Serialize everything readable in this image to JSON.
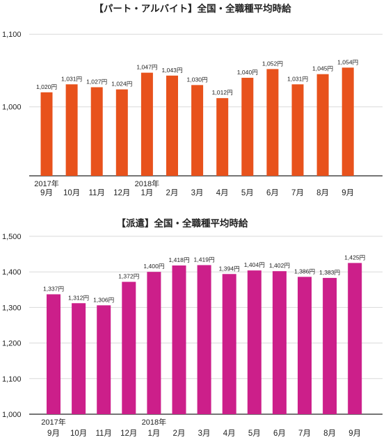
{
  "chart_data": [
    {
      "type": "bar",
      "title": "【パート・アルバイト】全国・全職種平均時給",
      "categories": [
        "9月",
        "10月",
        "11月",
        "12月",
        "1月",
        "2月",
        "3月",
        "4月",
        "5月",
        "6月",
        "7月",
        "8月",
        "9月"
      ],
      "year_labels": [
        {
          "index": 0,
          "text": "2017年"
        },
        {
          "index": 4,
          "text": "2018年"
        }
      ],
      "values": [
        1020,
        1031,
        1027,
        1024,
        1047,
        1043,
        1030,
        1012,
        1040,
        1052,
        1031,
        1045,
        1054
      ],
      "value_labels": [
        "1,020円",
        "1,031円",
        "1,027円",
        "1,024円",
        "1,047円",
        "1,043円",
        "1,030円",
        "1,012円",
        "1,040円",
        "1,052円",
        "1,031円",
        "1,045円",
        "1,054円"
      ],
      "yticks": [
        "1,000",
        "1,100"
      ],
      "ytick_values": [
        1000,
        1100
      ],
      "ylim": [
        905,
        1105
      ],
      "bar_color": "#e8521c",
      "grid": true
    },
    {
      "type": "bar",
      "title": "【派遣】全国・全職種平均時給",
      "categories": [
        "9月",
        "10月",
        "11月",
        "12月",
        "1月",
        "2月",
        "3月",
        "4月",
        "5月",
        "6月",
        "7月",
        "8月",
        "9月"
      ],
      "year_labels": [
        {
          "index": 0,
          "text": "2017年"
        },
        {
          "index": 4,
          "text": "2018年"
        }
      ],
      "values": [
        1337,
        1312,
        1306,
        1372,
        1400,
        1418,
        1419,
        1394,
        1404,
        1402,
        1386,
        1383,
        1425
      ],
      "value_labels": [
        "1,337円",
        "1,312円",
        "1,306円",
        "1,372円",
        "1,400円",
        "1,418円",
        "1,419円",
        "1,394円",
        "1,404円",
        "1,402円",
        "1,386円",
        "1,383円",
        "1,425円"
      ],
      "yticks": [
        "1,000",
        "1,100",
        "1,200",
        "1,300",
        "1,400",
        "1,500"
      ],
      "ytick_values": [
        1000,
        1100,
        1200,
        1300,
        1400,
        1500
      ],
      "ylim": [
        1000,
        1500
      ],
      "bar_color": "#cc1f8a",
      "grid": true
    }
  ]
}
